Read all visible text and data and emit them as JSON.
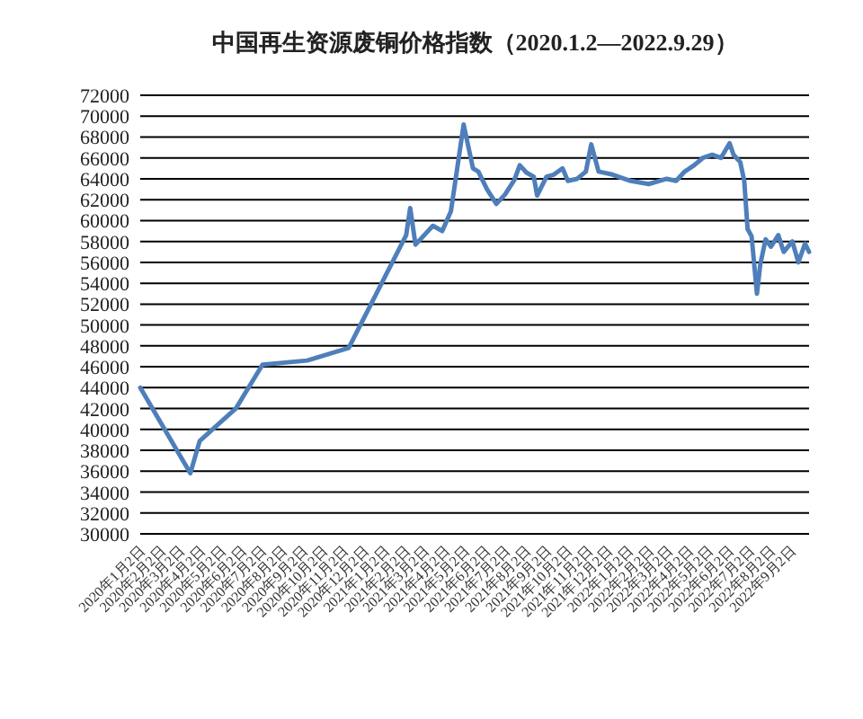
{
  "chart_data": {
    "type": "line",
    "title": "中国再生资源废铜价格指数（2020.1.2—2022.9.29）",
    "series": [
      {
        "color": "#4f7fba",
        "x": [
          "2020-01-02",
          "2020-03-17",
          "2020-03-31",
          "2020-05-24",
          "2020-07-03",
          "2020-09-08",
          "2020-11-09",
          "2021-02-03",
          "2021-02-09",
          "2021-02-17",
          "2021-03-15",
          "2021-03-29",
          "2021-04-11",
          "2021-04-30",
          "2021-05-14",
          "2021-05-22",
          "2021-06-04",
          "2021-06-18",
          "2021-07-01",
          "2021-07-15",
          "2021-07-23",
          "2021-08-02",
          "2021-08-13",
          "2021-08-18",
          "2021-09-01",
          "2021-09-12",
          "2021-09-25",
          "2021-10-03",
          "2021-10-17",
          "2021-10-30",
          "2021-11-07",
          "2021-11-18",
          "2021-12-09",
          "2022-01-05",
          "2022-02-01",
          "2022-02-28",
          "2022-03-14",
          "2022-03-27",
          "2022-04-10",
          "2022-04-23",
          "2022-05-07",
          "2022-05-20",
          "2022-06-02",
          "2022-06-08",
          "2022-06-18",
          "2022-06-24",
          "2022-06-29",
          "2022-07-05",
          "2022-07-13",
          "2022-07-18",
          "2022-07-26",
          "2022-08-03",
          "2022-08-14",
          "2022-08-22",
          "2022-09-04",
          "2022-09-13",
          "2022-09-23",
          "2022-09-29"
        ],
        "values": [
          44000,
          35800,
          38900,
          42000,
          46200,
          46600,
          47800,
          58600,
          61200,
          57700,
          59500,
          59000,
          60900,
          69200,
          65000,
          64700,
          63000,
          61600,
          62500,
          63900,
          65300,
          64600,
          64200,
          62400,
          64200,
          64400,
          65000,
          63800,
          64000,
          64700,
          67300,
          64700,
          64400,
          63800,
          63500,
          64000,
          63800,
          64700,
          65300,
          66000,
          66300,
          66000,
          67400,
          66300,
          65600,
          63800,
          59200,
          58500,
          53000,
          55800,
          58200,
          57500,
          58600,
          57000,
          58000,
          56000,
          57800,
          57000
        ]
      }
    ],
    "xlim": [
      "2020-01-02",
      "2022-09-29"
    ],
    "xticks": [
      {
        "value": "2020-01-02",
        "label": "2020年1月2日"
      },
      {
        "value": "2020-02-02",
        "label": "2020年2月2日"
      },
      {
        "value": "2020-03-02",
        "label": "2020年3月2日"
      },
      {
        "value": "2020-04-02",
        "label": "2020年4月2日"
      },
      {
        "value": "2020-05-02",
        "label": "2020年5月2日"
      },
      {
        "value": "2020-06-02",
        "label": "2020年6月2日"
      },
      {
        "value": "2020-07-02",
        "label": "2020年7月2日"
      },
      {
        "value": "2020-08-02",
        "label": "2020年8月2日"
      },
      {
        "value": "2020-09-02",
        "label": "2020年9月2日"
      },
      {
        "value": "2020-10-02",
        "label": "2020年10月2日"
      },
      {
        "value": "2020-11-02",
        "label": "2020年11月2日"
      },
      {
        "value": "2020-12-02",
        "label": "2020年12月2日"
      },
      {
        "value": "2021-01-02",
        "label": "2021年1月2日"
      },
      {
        "value": "2021-02-02",
        "label": "2021年2月2日"
      },
      {
        "value": "2021-03-02",
        "label": "2021年3月2日"
      },
      {
        "value": "2021-04-02",
        "label": "2021年4月2日"
      },
      {
        "value": "2021-05-02",
        "label": "2021年5月2日"
      },
      {
        "value": "2021-06-02",
        "label": "2021年6月2日"
      },
      {
        "value": "2021-07-02",
        "label": "2021年7月2日"
      },
      {
        "value": "2021-08-02",
        "label": "2021年8月2日"
      },
      {
        "value": "2021-09-02",
        "label": "2021年9月2日"
      },
      {
        "value": "2021-10-02",
        "label": "2021年10月2日"
      },
      {
        "value": "2021-11-02",
        "label": "2021年11月2日"
      },
      {
        "value": "2021-12-02",
        "label": "2021年12月2日"
      },
      {
        "value": "2022-01-02",
        "label": "2022年1月2日"
      },
      {
        "value": "2022-02-02",
        "label": "2022年2月2日"
      },
      {
        "value": "2022-03-02",
        "label": "2022年3月2日"
      },
      {
        "value": "2022-04-02",
        "label": "2022年4月2日"
      },
      {
        "value": "2022-05-02",
        "label": "2022年5月2日"
      },
      {
        "value": "2022-06-02",
        "label": "2022年6月2日"
      },
      {
        "value": "2022-07-02",
        "label": "2022年7月2日"
      },
      {
        "value": "2022-08-02",
        "label": "2022年8月2日"
      },
      {
        "value": "2022-09-02",
        "label": "2022年9月2日"
      }
    ],
    "ylim": [
      30000,
      72000
    ],
    "yticks": [
      30000,
      32000,
      34000,
      36000,
      38000,
      40000,
      42000,
      44000,
      46000,
      48000,
      50000,
      52000,
      54000,
      56000,
      58000,
      60000,
      62000,
      64000,
      66000,
      68000,
      70000,
      72000
    ],
    "grid": "y",
    "marker": "none",
    "line_style": "solid"
  }
}
